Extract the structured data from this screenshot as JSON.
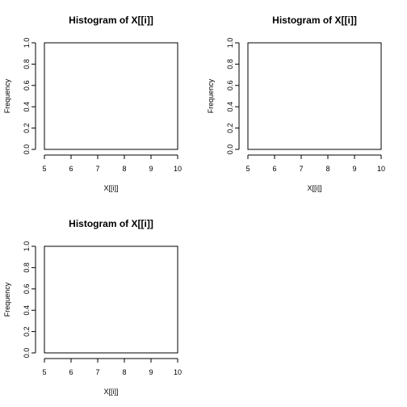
{
  "chart_data": [
    {
      "type": "bar",
      "title": "Histogram of X[[i]]",
      "xlabel": "X[[i]]",
      "ylabel": "Frequency",
      "xlim": [
        5,
        10
      ],
      "ylim": [
        0,
        1
      ],
      "x_ticks": [
        "5",
        "6",
        "7",
        "8",
        "9",
        "10"
      ],
      "y_ticks": [
        "0.0",
        "0.2",
        "0.4",
        "0.6",
        "0.8",
        "1.0"
      ],
      "bins": [],
      "values": []
    },
    {
      "type": "bar",
      "title": "Histogram of X[[i]]",
      "xlabel": "X[[i]]",
      "ylabel": "Frequency",
      "xlim": [
        5,
        10
      ],
      "ylim": [
        0,
        1
      ],
      "x_ticks": [
        "5",
        "6",
        "7",
        "8",
        "9",
        "10"
      ],
      "y_ticks": [
        "0.0",
        "0.2",
        "0.4",
        "0.6",
        "0.8",
        "1.0"
      ],
      "bins": [],
      "values": []
    },
    {
      "type": "bar",
      "title": "Histogram of X[[i]]",
      "xlabel": "X[[i]]",
      "ylabel": "Frequency",
      "xlim": [
        5,
        10
      ],
      "ylim": [
        0,
        1
      ],
      "x_ticks": [
        "5",
        "6",
        "7",
        "8",
        "9",
        "10"
      ],
      "y_ticks": [
        "0.0",
        "0.2",
        "0.4",
        "0.6",
        "0.8",
        "1.0"
      ],
      "bins": [],
      "values": []
    }
  ]
}
